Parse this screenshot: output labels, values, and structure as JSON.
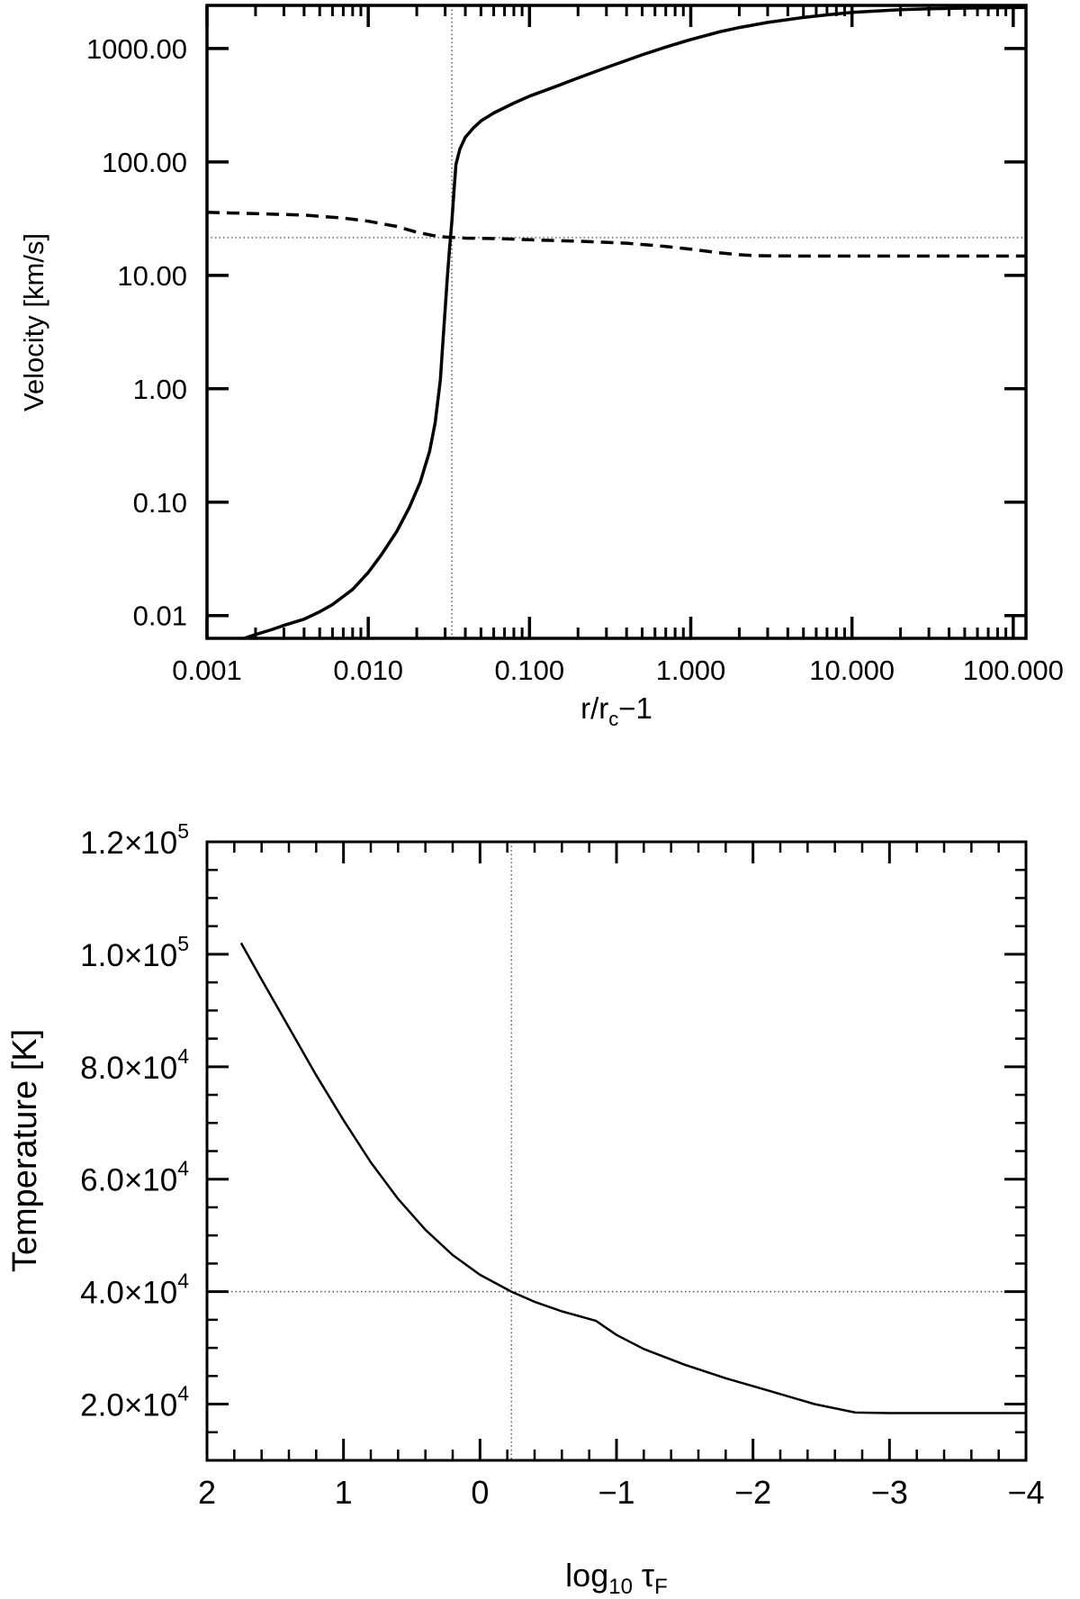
{
  "chart_data": [
    {
      "type": "line",
      "xlabel": "r/r",
      "xlabel_sub": "c",
      "xlabel_suffix": "−1",
      "ylabel": "Velocity [km/s]",
      "xscale": "log",
      "yscale": "log",
      "xlim": [
        0.001,
        120
      ],
      "ylim": [
        0.0063,
        2400
      ],
      "xticks": [
        {
          "value": 0.001,
          "label": "0.001"
        },
        {
          "value": 0.01,
          "label": "0.010"
        },
        {
          "value": 0.1,
          "label": "0.100"
        },
        {
          "value": 1,
          "label": "1.000"
        },
        {
          "value": 10,
          "label": "10.000"
        },
        {
          "value": 100,
          "label": "100.000"
        }
      ],
      "yticks": [
        {
          "value": 0.01,
          "label": "0.01"
        },
        {
          "value": 0.1,
          "label": "0.10"
        },
        {
          "value": 1,
          "label": "1.00"
        },
        {
          "value": 10,
          "label": "10.00"
        },
        {
          "value": 100,
          "label": "100.00"
        },
        {
          "value": 1000,
          "label": "1000.00"
        }
      ],
      "reference_lines": {
        "x": 0.033,
        "y": 21.5
      },
      "series": [
        {
          "style": "solid",
          "points": [
            [
              0.0017,
              0.0063
            ],
            [
              0.002,
              0.0068
            ],
            [
              0.0025,
              0.0075
            ],
            [
              0.003,
              0.0082
            ],
            [
              0.004,
              0.0093
            ],
            [
              0.005,
              0.0108
            ],
            [
              0.006,
              0.0125
            ],
            [
              0.008,
              0.017
            ],
            [
              0.01,
              0.024
            ],
            [
              0.012,
              0.034
            ],
            [
              0.015,
              0.055
            ],
            [
              0.018,
              0.09
            ],
            [
              0.021,
              0.15
            ],
            [
              0.024,
              0.28
            ],
            [
              0.026,
              0.5
            ],
            [
              0.028,
              1.2
            ],
            [
              0.029,
              2.5
            ],
            [
              0.03,
              5
            ],
            [
              0.031,
              10
            ],
            [
              0.032,
              18
            ],
            [
              0.033,
              30
            ],
            [
              0.034,
              55
            ],
            [
              0.035,
              95
            ],
            [
              0.037,
              130
            ],
            [
              0.04,
              165
            ],
            [
              0.045,
              200
            ],
            [
              0.05,
              230
            ],
            [
              0.06,
              270
            ],
            [
              0.08,
              330
            ],
            [
              0.1,
              380
            ],
            [
              0.15,
              470
            ],
            [
              0.2,
              550
            ],
            [
              0.3,
              680
            ],
            [
              0.5,
              880
            ],
            [
              0.7,
              1030
            ],
            [
              1,
              1200
            ],
            [
              1.5,
              1400
            ],
            [
              2,
              1530
            ],
            [
              3,
              1700
            ],
            [
              5,
              1880
            ],
            [
              7,
              1980
            ],
            [
              10,
              2080
            ],
            [
              15,
              2150
            ],
            [
              20,
              2200
            ],
            [
              30,
              2240
            ],
            [
              50,
              2270
            ],
            [
              80,
              2290
            ],
            [
              120,
              2300
            ]
          ]
        },
        {
          "style": "dashed",
          "points": [
            [
              0.001,
              36
            ],
            [
              0.002,
              35
            ],
            [
              0.004,
              34
            ],
            [
              0.007,
              32
            ],
            [
              0.01,
              30
            ],
            [
              0.015,
              27
            ],
            [
              0.02,
              24
            ],
            [
              0.025,
              22.5
            ],
            [
              0.03,
              21.8
            ],
            [
              0.04,
              21.3
            ],
            [
              0.07,
              21
            ],
            [
              0.1,
              20.6
            ],
            [
              0.2,
              20
            ],
            [
              0.4,
              19.2
            ],
            [
              0.7,
              18
            ],
            [
              1,
              17
            ],
            [
              1.5,
              15.8
            ],
            [
              2,
              15.2
            ],
            [
              2.5,
              14.9
            ],
            [
              5,
              14.8
            ],
            [
              10,
              14.8
            ],
            [
              50,
              14.8
            ],
            [
              120,
              14.8
            ]
          ]
        }
      ]
    },
    {
      "type": "line",
      "xlabel": "log",
      "xlabel_sub": "10",
      "xlabel_suffix": " τ",
      "xlabel_suffix_sub": "F",
      "ylabel": "Temperature [K]",
      "xlim": [
        2,
        -4
      ],
      "ylim": [
        10000,
        120000
      ],
      "xticks": [
        {
          "value": 2,
          "label": "2"
        },
        {
          "value": 1,
          "label": "1"
        },
        {
          "value": 0,
          "label": "0"
        },
        {
          "value": -1,
          "label": "−1"
        },
        {
          "value": -2,
          "label": "−2"
        },
        {
          "value": -3,
          "label": "−3"
        },
        {
          "value": -4,
          "label": "−4"
        }
      ],
      "yticks": [
        {
          "value": 20000,
          "mantissa": "2.0",
          "times": "×10",
          "exponent": "4"
        },
        {
          "value": 40000,
          "mantissa": "4.0",
          "times": "×10",
          "exponent": "4"
        },
        {
          "value": 60000,
          "mantissa": "6.0",
          "times": "×10",
          "exponent": "4"
        },
        {
          "value": 80000,
          "mantissa": "8.0",
          "times": "×10",
          "exponent": "4"
        },
        {
          "value": 100000,
          "mantissa": "1.0",
          "times": "×10",
          "exponent": "5"
        },
        {
          "value": 120000,
          "mantissa": "1.2",
          "times": "×10",
          "exponent": "5"
        }
      ],
      "reference_lines": {
        "x": -0.23,
        "y": 40000
      },
      "series": [
        {
          "style": "solid",
          "points": [
            [
              1.75,
              102000
            ],
            [
              1.6,
              95500
            ],
            [
              1.4,
              87000
            ],
            [
              1.2,
              78500
            ],
            [
              1.0,
              70500
            ],
            [
              0.8,
              63000
            ],
            [
              0.6,
              56500
            ],
            [
              0.4,
              51000
            ],
            [
              0.2,
              46500
            ],
            [
              0.0,
              43000
            ],
            [
              -0.23,
              40000
            ],
            [
              -0.4,
              38200
            ],
            [
              -0.6,
              36500
            ],
            [
              -0.85,
              34800
            ],
            [
              -1.0,
              32300
            ],
            [
              -1.2,
              29800
            ],
            [
              -1.5,
              27000
            ],
            [
              -1.8,
              24600
            ],
            [
              -2.1,
              22500
            ],
            [
              -2.45,
              20000
            ],
            [
              -2.75,
              18500
            ],
            [
              -3.0,
              18400
            ],
            [
              -4.0,
              18400
            ]
          ]
        }
      ]
    }
  ]
}
